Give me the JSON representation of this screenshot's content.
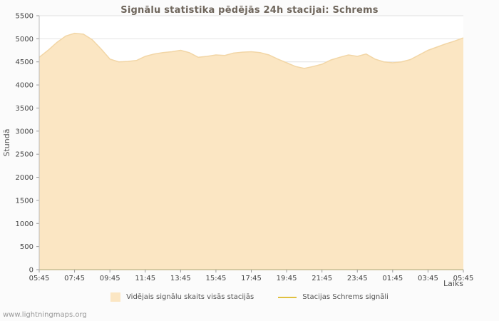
{
  "watermark": "www.lightningmaps.org",
  "chart_data": {
    "type": "area",
    "title": "Signālu statistika pēdējās 24h stacijai: Schrems",
    "xlabel": "Laiks",
    "ylabel": "Stundā",
    "ylim": [
      0,
      5500
    ],
    "ytick_step": 500,
    "grid": true,
    "legend_position": "bottom",
    "x_ticks": [
      "05:45",
      "07:45",
      "09:45",
      "11:45",
      "13:45",
      "15:45",
      "17:45",
      "19:45",
      "21:45",
      "23:45",
      "01:45",
      "03:45",
      "05:45"
    ],
    "series": [
      {
        "name": "Vidējais signālu skaits visās stacijās",
        "type": "area",
        "values": [
          4600,
          4750,
          4920,
          5060,
          5120,
          5100,
          4980,
          4780,
          4560,
          4500,
          4510,
          4530,
          4620,
          4670,
          4700,
          4720,
          4750,
          4700,
          4600,
          4620,
          4650,
          4640,
          4690,
          4710,
          4720,
          4700,
          4650,
          4560,
          4480,
          4400,
          4360,
          4400,
          4450,
          4540,
          4600,
          4650,
          4620,
          4670,
          4560,
          4500,
          4480,
          4500,
          4550,
          4650,
          4750,
          4820,
          4890,
          4950,
          5020
        ]
      },
      {
        "name": "Stacijas Schrems signāli",
        "type": "line",
        "values": [
          0,
          0
        ]
      }
    ],
    "colors": {
      "area_fill": "#fbe6c3",
      "area_edge": "#f2d6a6",
      "line": "#e0c040",
      "grid": "#e2e2e2",
      "axis": "#bbbbbb",
      "tick_mark": "#999999",
      "plot_bg": "#ffffff"
    }
  }
}
